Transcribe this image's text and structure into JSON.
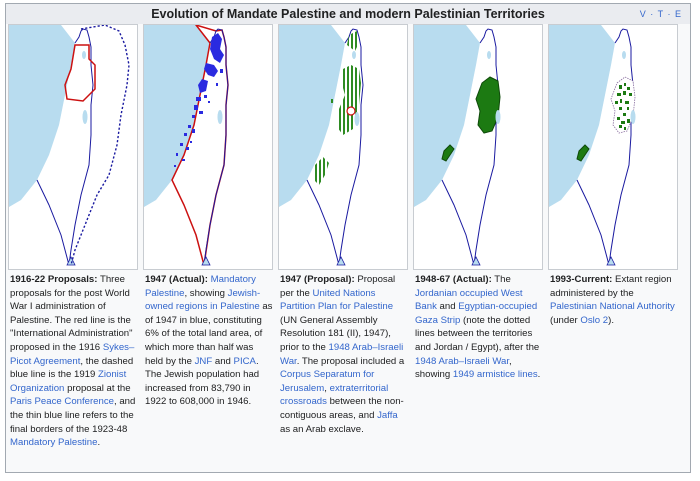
{
  "navbox": {
    "title": "Evolution of Mandate Palestine and modern Palestinian Territories",
    "vte": [
      "V",
      "·",
      "T",
      "·",
      "E"
    ]
  },
  "colors": {
    "land": "#ffffff",
    "water": "#b8dcef",
    "border_blue": "#1a1aa0",
    "proposal_red": "#cc1111",
    "jewish_land": "#2a2ae0",
    "arab_green": "#2e8b22",
    "dark_green": "#1c7a12",
    "link": "#3366cc"
  },
  "panels": [
    {
      "caption": [
        {
          "t": "b",
          "v": "1916-22 Proposals:"
        },
        {
          "t": "s",
          "v": " Three proposals for the post World War I administration of Palestine. The red line is the \"International Administration\" proposed in the 1916 "
        },
        {
          "t": "a",
          "v": "Sykes–Picot Agreement"
        },
        {
          "t": "s",
          "v": ", the dashed blue line is the 1919 "
        },
        {
          "t": "a",
          "v": "Zionist Organization"
        },
        {
          "t": "s",
          "v": " proposal at the "
        },
        {
          "t": "a",
          "v": "Paris Peace Conference"
        },
        {
          "t": "s",
          "v": ", and the thin blue line refers to the final borders of the 1923-48 "
        },
        {
          "t": "a",
          "v": "Mandatory Palestine"
        },
        {
          "t": "s",
          "v": "."
        }
      ]
    },
    {
      "caption": [
        {
          "t": "b",
          "v": "1947 (Actual):"
        },
        {
          "t": "s",
          "v": " "
        },
        {
          "t": "a",
          "v": "Mandatory Palestine"
        },
        {
          "t": "s",
          "v": ", showing "
        },
        {
          "t": "a",
          "v": "Jewish-owned regions in Palestine"
        },
        {
          "t": "s",
          "v": " as of 1947 in blue, constituting 6% of the total land area, of which more than half was held by the "
        },
        {
          "t": "a",
          "v": "JNF"
        },
        {
          "t": "s",
          "v": " and "
        },
        {
          "t": "a",
          "v": "PICA"
        },
        {
          "t": "s",
          "v": ". The Jewish population had increased from 83,790 in 1922 to 608,000 in 1946."
        }
      ]
    },
    {
      "caption": [
        {
          "t": "b",
          "v": "1947 (Proposal):"
        },
        {
          "t": "s",
          "v": " Proposal per the "
        },
        {
          "t": "a",
          "v": "United Nations Partition Plan for Palestine"
        },
        {
          "t": "s",
          "v": " (UN General Assembly Resolution 181 (II), 1947), prior to the "
        },
        {
          "t": "a",
          "v": "1948 Arab–Israeli War"
        },
        {
          "t": "s",
          "v": ". The proposal included a "
        },
        {
          "t": "a",
          "v": "Corpus Separatum for Jerusalem"
        },
        {
          "t": "s",
          "v": ", "
        },
        {
          "t": "a",
          "v": "extraterritorial crossroads"
        },
        {
          "t": "s",
          "v": " between the non-contiguous areas, and "
        },
        {
          "t": "a",
          "v": "Jaffa"
        },
        {
          "t": "s",
          "v": " as an Arab exclave."
        }
      ]
    },
    {
      "caption": [
        {
          "t": "b",
          "v": "1948-67 (Actual):"
        },
        {
          "t": "s",
          "v": " The "
        },
        {
          "t": "a",
          "v": "Jordanian occupied West Bank"
        },
        {
          "t": "s",
          "v": " and "
        },
        {
          "t": "a",
          "v": "Egyptian-occupied Gaza Strip"
        },
        {
          "t": "s",
          "v": " (note the dotted lines between the territories and Jordan / Egypt), after the "
        },
        {
          "t": "a",
          "v": "1948 Arab–Israeli War"
        },
        {
          "t": "s",
          "v": ", showing "
        },
        {
          "t": "a",
          "v": "1949 armistice lines"
        },
        {
          "t": "s",
          "v": "."
        }
      ]
    },
    {
      "caption": [
        {
          "t": "b",
          "v": "1993-Current:"
        },
        {
          "t": "s",
          "v": " Extant region administered by the "
        },
        {
          "t": "a",
          "v": "Palestinian National Authority"
        },
        {
          "t": "s",
          "v": " (under "
        },
        {
          "t": "a",
          "v": "Oslo 2"
        },
        {
          "t": "s",
          "v": ")."
        }
      ]
    }
  ]
}
